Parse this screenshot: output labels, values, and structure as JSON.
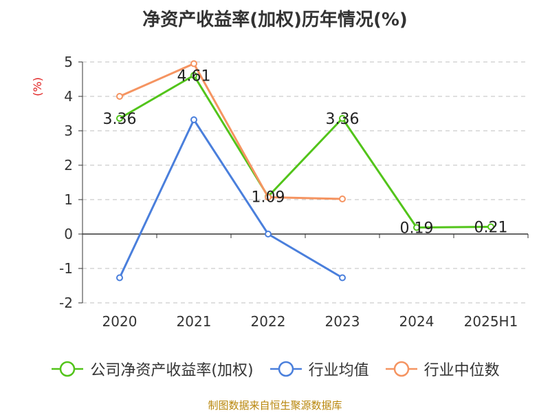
{
  "chart_data": {
    "type": "line",
    "title": "净资产收益率(加权)历年情况(%)",
    "ylabel": "(%)",
    "categories": [
      "2020",
      "2021",
      "2022",
      "2023",
      "2024",
      "2025H1"
    ],
    "y_ticks": [
      "5",
      "4",
      "3",
      "2",
      "1",
      "0",
      "-1",
      "-2"
    ],
    "ylim": [
      -2,
      5
    ],
    "grid": true,
    "legend_position": "bottom",
    "series": [
      {
        "name": "公司净资产收益率(加权)",
        "color": "#52c41a",
        "values": [
          3.36,
          4.61,
          1.09,
          3.36,
          0.19,
          0.21
        ],
        "labels": [
          "3.36",
          "4.61",
          "1.09",
          "3.36",
          "0.19",
          "0.21"
        ]
      },
      {
        "name": "行业均值",
        "color": "#4a7fdc",
        "values": [
          -1.27,
          3.32,
          0.0,
          -1.27,
          null,
          null
        ]
      },
      {
        "name": "行业中位数",
        "color": "#f59461",
        "values": [
          4.0,
          4.95,
          1.07,
          1.02,
          null,
          null
        ]
      }
    ]
  },
  "source": "制图数据来自恒生聚源数据库"
}
